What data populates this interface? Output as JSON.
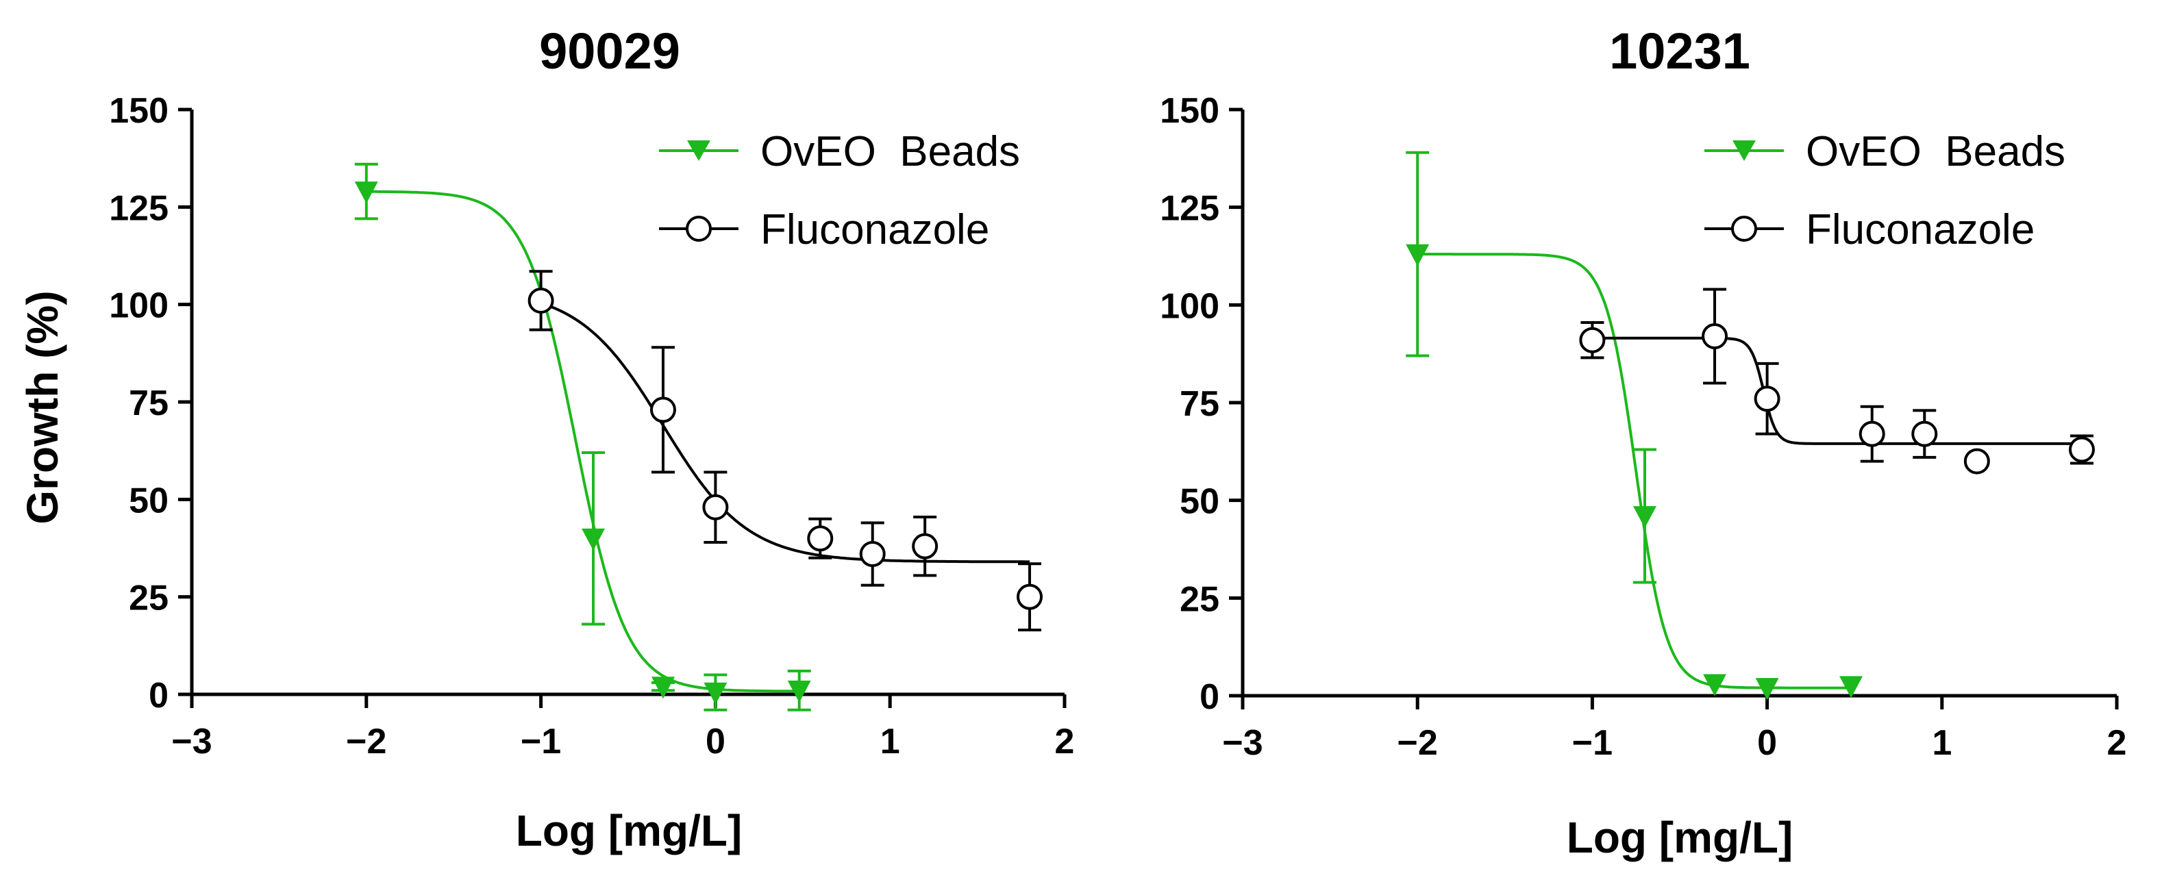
{
  "chart_data": [
    {
      "type": "scatter",
      "title": "90029",
      "xlabel": "Log [mg/L]",
      "ylabel": "Growth (%)",
      "xlim": [
        -3,
        2
      ],
      "ylim": [
        0,
        150
      ],
      "xticks": [
        -3,
        -2,
        -1,
        0,
        1,
        2
      ],
      "xtick_labels": [
        "−3",
        "−2",
        "−1",
        "0",
        "1",
        "2"
      ],
      "yticks": [
        0,
        25,
        50,
        75,
        100,
        125,
        150
      ],
      "ytick_labels": [
        "0",
        "25",
        "50",
        "75",
        "100",
        "125",
        "150"
      ],
      "legend_position": "top-right",
      "series": [
        {
          "name": "OvEO  Beads",
          "color": "#1cb81c",
          "marker": "triangle-down",
          "x": [
            -2,
            -0.7,
            -0.3,
            0,
            0.48
          ],
          "y": [
            129,
            40,
            2,
            0.5,
            1
          ],
          "err": [
            7,
            22,
            1,
            4.5,
            5
          ],
          "fit": {
            "top": 129,
            "bottom": 0.8,
            "logec50": -0.8,
            "hill": -3.0,
            "xrange": [
              -2,
              0.48
            ]
          }
        },
        {
          "name": "Fluconazole",
          "color": "#000000",
          "marker": "circle-open",
          "x": [
            -1,
            -0.3,
            0,
            0.6,
            0.9,
            1.2,
            1.8
          ],
          "y": [
            101,
            73,
            48,
            40,
            36,
            38,
            25
          ],
          "err": [
            7.5,
            16,
            9,
            5,
            8,
            7.5,
            8.5
          ],
          "fit": {
            "top": 104,
            "bottom": 34,
            "logec50": -0.3,
            "hill": -1.8,
            "xrange": [
              -1,
              1.8
            ]
          }
        }
      ]
    },
    {
      "type": "scatter",
      "title": "10231",
      "xlabel": "Log [mg/L]",
      "ylabel": "",
      "xlim": [
        -3,
        2
      ],
      "ylim": [
        0,
        150
      ],
      "xticks": [
        -3,
        -2,
        -1,
        0,
        1,
        2
      ],
      "xtick_labels": [
        "−3",
        "−2",
        "−1",
        "0",
        "1",
        "2"
      ],
      "yticks": [
        0,
        25,
        50,
        75,
        100,
        125,
        150
      ],
      "ytick_labels": [
        "0",
        "25",
        "50",
        "75",
        "100",
        "125",
        "150"
      ],
      "legend_position": "top-right",
      "series": [
        {
          "name": "OvEO  Beads",
          "color": "#1cb81c",
          "marker": "triangle-down",
          "x": [
            -2,
            -0.7,
            -0.3,
            0,
            0.48
          ],
          "y": [
            113,
            46,
            3,
            2,
            2.5
          ],
          "err": [
            26,
            17,
            0,
            0,
            0
          ],
          "fit": {
            "top": 113,
            "bottom": 2,
            "logec50": -0.75,
            "hill": -5.0,
            "xrange": [
              -2,
              0.48
            ]
          }
        },
        {
          "name": "Fluconazole",
          "color": "#000000",
          "marker": "circle-open",
          "x": [
            -1,
            -0.3,
            0,
            0.6,
            0.9,
            1.2,
            1.8
          ],
          "y": [
            91,
            92,
            76,
            67,
            67,
            60,
            63
          ],
          "err": [
            4.5,
            12,
            9,
            7,
            6,
            0,
            3.5
          ],
          "fit": {
            "top": 91.5,
            "bottom": 64.5,
            "logec50": -0.02,
            "hill": -12,
            "xrange": [
              -1,
              1.8
            ]
          }
        }
      ]
    }
  ]
}
